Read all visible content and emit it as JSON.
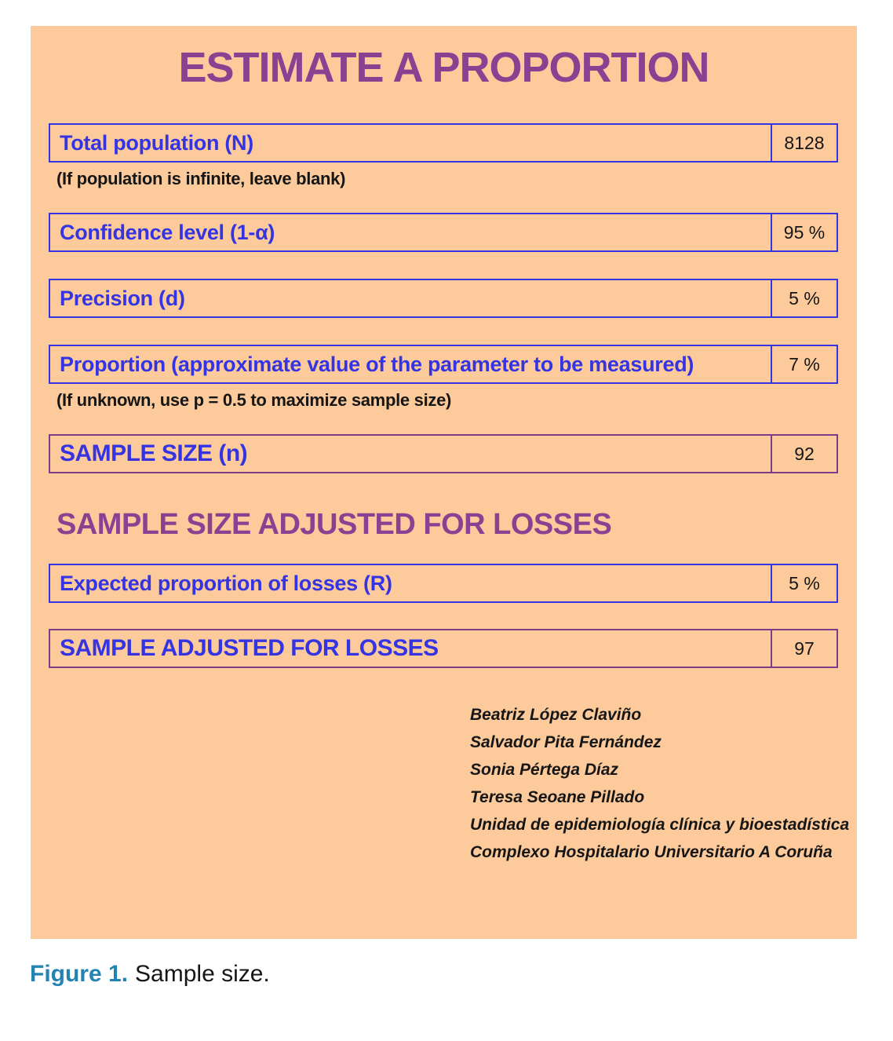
{
  "panel": {
    "title": "ESTIMATE A PROPORTION",
    "rows": [
      {
        "label": "Total population (N)",
        "value": "8128"
      },
      {
        "label": "Confidence level (1-α)",
        "value": "95 %"
      },
      {
        "label": "Precision (d)",
        "value": "5 %"
      },
      {
        "label": "Proportion (approximate value of the parameter to be measured)",
        "value": "7 %"
      },
      {
        "label": "SAMPLE SIZE (n)",
        "value": "92"
      },
      {
        "label": "Expected proportion of losses (R)",
        "value": "5 %"
      },
      {
        "label": "SAMPLE ADJUSTED FOR LOSSES",
        "value": "97"
      }
    ],
    "notes": {
      "population": "(If population is infinite, leave blank)",
      "proportion": "(If unknown, use p = 0.5 to maximize sample size)"
    },
    "section2_heading": "SAMPLE SIZE ADJUSTED FOR LOSSES",
    "credits": [
      "Beatriz López Claviño",
      "Salvador Pita Fernández",
      "Sonia Pértega Díaz",
      "Teresa Seoane Pillado",
      "Unidad de epidemiología clínica y bioestadística",
      "Complexo Hospitalario Universitario A Coruña"
    ]
  },
  "caption": {
    "label": "Figure 1.",
    "text": "Sample size."
  },
  "colors": {
    "panel_background": "#fcca9b",
    "field_blue": "#3434e3",
    "heading_purple": "#8a4191",
    "result_border_purple": "#7d3c87",
    "caption_blue": "#2383b2",
    "value_text": "#161616"
  }
}
